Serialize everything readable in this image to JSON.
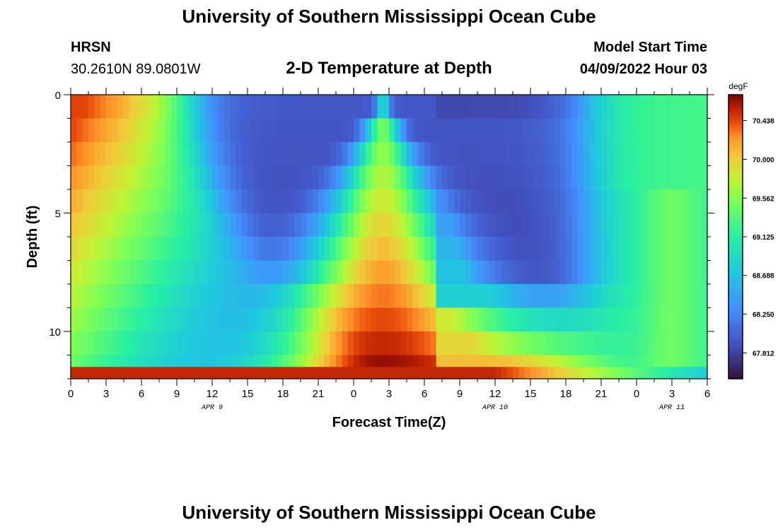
{
  "header": {
    "title": "University of Southern Mississippi Ocean Cube",
    "station": "HRSN",
    "coords": "30.2610N  89.0801W",
    "subtitle": "2-D Temperature at Depth",
    "model_label": "Model Start Time",
    "model_time": "04/09/2022 Hour 03"
  },
  "footer": {
    "title": "University of Southern Mississippi Ocean Cube"
  },
  "chart_data": {
    "type": "heatmap",
    "title": "2-D Temperature at Depth",
    "xlabel": "Forecast Time(Z)",
    "ylabel": "Depth (ft)",
    "xlim": [
      0,
      54
    ],
    "ylim": [
      12,
      0
    ],
    "x_ticks": [
      {
        "x": 0,
        "label": "0"
      },
      {
        "x": 3,
        "label": "3"
      },
      {
        "x": 6,
        "label": "6"
      },
      {
        "x": 9,
        "label": "9"
      },
      {
        "x": 12,
        "label": "12"
      },
      {
        "x": 15,
        "label": "15"
      },
      {
        "x": 18,
        "label": "18"
      },
      {
        "x": 21,
        "label": "21"
      },
      {
        "x": 24,
        "label": "0"
      },
      {
        "x": 27,
        "label": "3"
      },
      {
        "x": 30,
        "label": "6"
      },
      {
        "x": 33,
        "label": "9"
      },
      {
        "x": 36,
        "label": "12"
      },
      {
        "x": 39,
        "label": "15"
      },
      {
        "x": 42,
        "label": "18"
      },
      {
        "x": 45,
        "label": "21"
      },
      {
        "x": 48,
        "label": "0"
      },
      {
        "x": 51,
        "label": "3"
      },
      {
        "x": 54,
        "label": "6"
      }
    ],
    "date_labels": [
      {
        "x": 12,
        "label": "APR 9"
      },
      {
        "x": 36,
        "label": "APR 10"
      },
      {
        "x": 51,
        "label": "APR 11"
      }
    ],
    "y_ticks": [
      {
        "y": 0,
        "label": "0"
      },
      {
        "y": 5,
        "label": "5"
      },
      {
        "y": 10,
        "label": "10"
      }
    ],
    "colorbar": {
      "unit": "degF",
      "min": 67.52,
      "max": 70.73,
      "ticks": [
        "70.438",
        "70.000",
        "69.562",
        "69.125",
        "68.688",
        "68.250",
        "67.812"
      ]
    },
    "depth_levels": [
      0,
      1,
      2,
      3,
      4,
      5,
      6,
      7,
      8,
      9,
      10,
      11
    ],
    "bottom_band_value": 70.55
  }
}
